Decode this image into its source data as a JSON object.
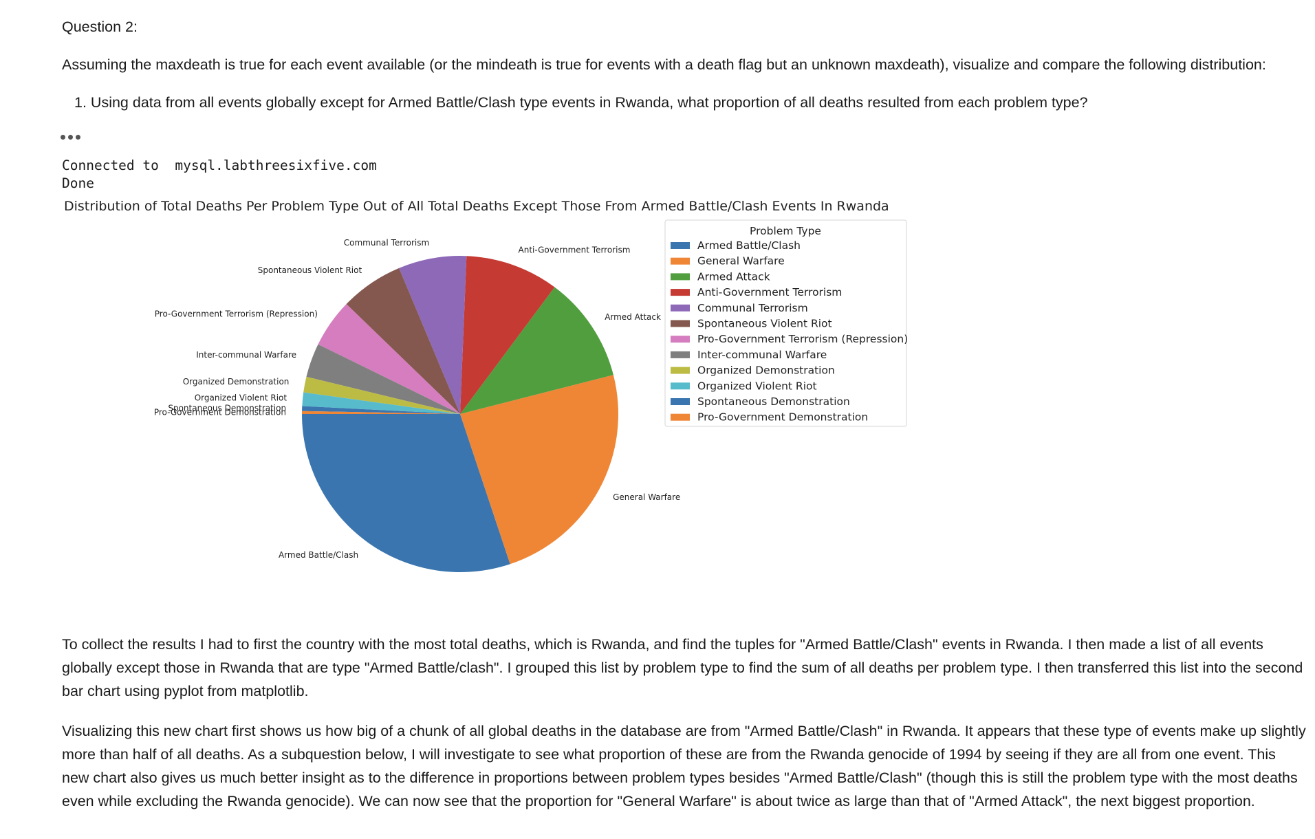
{
  "notebook": {
    "question_title": "Question 2:",
    "intro": "Assuming the maxdeath is true for each event available (or the mindeath is true for events with a death flag but an unknown maxdeath), visualize and compare the following distribution:",
    "list_number": "1.",
    "list_item": "Using data from all events globally except for Armed Battle/Clash type events in Rwanda, what proportion of all deaths resulted from each problem type?",
    "output_line1": "Connected to  mysql.labthreesixfive.com",
    "output_line2": "Done",
    "paragraph1": "To collect the results I had to first the country with the most total deaths, which is Rwanda, and find the tuples for \"Armed Battle/Clash\" events in Rwanda. I then made a list of all events globally except those in Rwanda that are type \"Armed Battle/clash\". I grouped this list by problem type to find the sum of all deaths per problem type. I then transferred this list into the second bar chart using pyplot from matplotlib.",
    "paragraph2": "Visualizing this new chart first shows us how big of a chunk of all global deaths in the database are from \"Armed Battle/Clash\" in Rwanda. It appears that these type of events make up slightly more than half of all deaths. As a subquestion below, I will investigate to see what proportion of these are from the Rwanda genocide of 1994 by seeing if they are all from one event. This new chart also gives us much better insight as to the difference in proportions between problem types besides \"Armed Battle/Clash\" (though this is still the problem type with the most deaths even while excluding the Rwanda genocide). We can now see that the proportion for \"General Warfare\" is about twice as large than that of \"Armed Attack\", the next biggest proportion."
  },
  "chart_data": {
    "type": "pie",
    "title": "Distribution of Total Deaths Per Problem Type Out of All Total Deaths Except Those From Armed Battle/Clash Events In Rwanda",
    "legend_title": "Problem Type",
    "legend_position": "right",
    "categories": [
      "Armed Battle/Clash",
      "General Warfare",
      "Armed Attack",
      "Anti-Government Terrorism",
      "Communal Terrorism",
      "Spontaneous Violent Riot",
      "Pro-Government Terrorism (Repression)",
      "Inter-communal Warfare",
      "Organized Demonstration",
      "Organized Violent Riot",
      "Spontaneous Demonstration",
      "Pro-Government Demonstration"
    ],
    "values": [
      30.3,
      24.0,
      10.9,
      9.6,
      7.0,
      6.5,
      5.0,
      3.5,
      1.6,
      1.4,
      0.5,
      0.3
    ],
    "colors": [
      "#3a75af",
      "#ef8636",
      "#519e3e",
      "#c53a32",
      "#8d69b8",
      "#84584e",
      "#d57dbe",
      "#7f7f7f",
      "#bcbc45",
      "#58bbcc",
      "#3a75af",
      "#ef8636"
    ],
    "slice_labels": [
      "Armed Battle/Clash",
      "General Warfare",
      "Armed Attack",
      "Anti-Government Terrorism",
      "Communal Terrorism",
      "Spontaneous Violent Riot",
      "Pro-Government Terrorism (Repression)",
      "Inter-communal Warfare",
      "Organized Demonstration",
      "Organized Violent Riot",
      "Spontaneous Demonstration",
      "Pro-Government Demonstration"
    ]
  }
}
